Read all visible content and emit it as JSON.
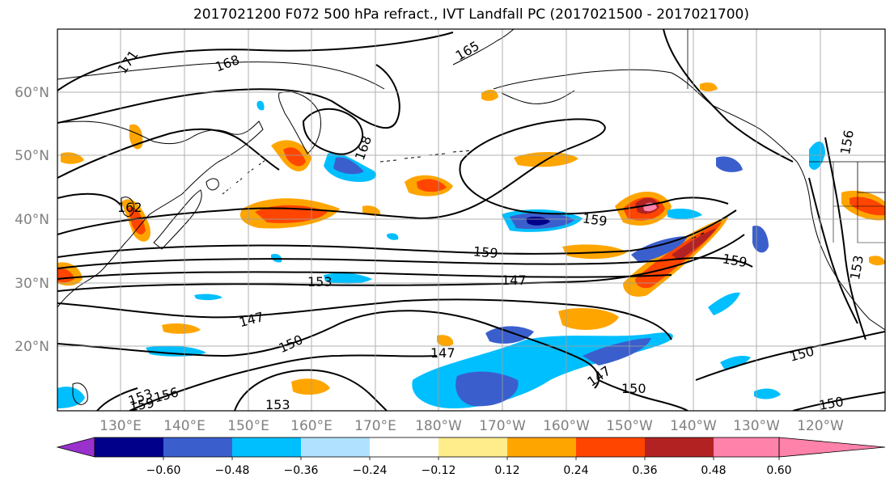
{
  "title": "2017021200 F072 500 hPa refract., IVT Landfall PC (2017021500 - 2017021700)",
  "lat_labels": [
    "60°N",
    "50°N",
    "40°N",
    "30°N",
    "20°N"
  ],
  "lon_labels": [
    "130°E",
    "140°E",
    "150°E",
    "160°E",
    "170°E",
    "180°W",
    "170°W",
    "160°W",
    "150°W",
    "140°W",
    "130°W",
    "120°W"
  ],
  "contour_labels": [
    "171",
    "168",
    "165",
    "168",
    "162",
    "159",
    "159",
    "159",
    "153",
    "147",
    "147",
    "150",
    "147",
    "147",
    "150",
    "150",
    "150",
    "153",
    "153",
    "159",
    "156",
    "156",
    "153"
  ],
  "colorbar": {
    "tick_labels": [
      "−0.60",
      "−0.48",
      "−0.36",
      "−0.24",
      "−0.12",
      "0.12",
      "0.24",
      "0.36",
      "0.48",
      "0.60"
    ],
    "colors": [
      "#9932cc",
      "#00008b",
      "#3a5fcd",
      "#00bfff",
      "#b0e2ff",
      "#ffffff",
      "#ffec8b",
      "#ffa500",
      "#ff4500",
      "#b22222",
      "#ff82ab"
    ]
  },
  "colors": {
    "land_outline": "#000000",
    "grid": "#a0a0a0",
    "axis_label": "#808080"
  }
}
